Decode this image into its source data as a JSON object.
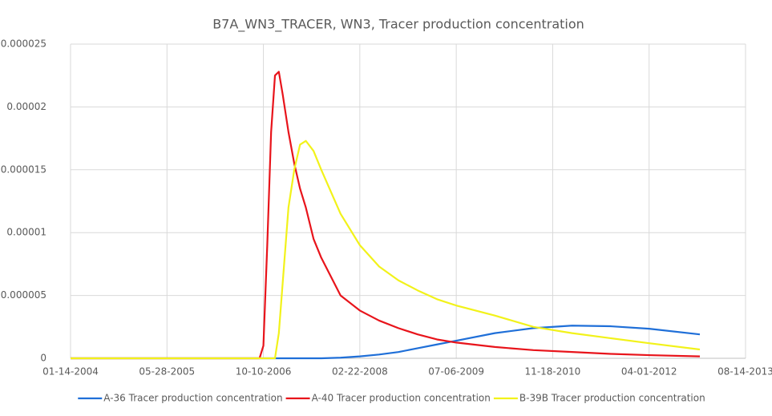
{
  "chart_data": {
    "type": "line",
    "title": "B7A_WN3_TRACER, WN3, Tracer production concentration",
    "x": [
      38000,
      38500,
      38980,
      39000,
      39020,
      39040,
      39060,
      39080,
      39100,
      39130,
      39160,
      39190,
      39220,
      39260,
      39300,
      39400,
      39500,
      39600,
      39700,
      39800,
      39900,
      40000,
      40200,
      40400,
      40600,
      40800,
      41000,
      41263
    ],
    "series": [
      {
        "name": "A-36 Tracer production concentration",
        "color": "#1f6fd8",
        "values": [
          0,
          0,
          0,
          0,
          0,
          0,
          0,
          0,
          0,
          0,
          0,
          0,
          0,
          0,
          0,
          5e-08,
          1.5e-07,
          3e-07,
          5e-07,
          8e-07,
          1.1e-06,
          1.4e-06,
          2e-06,
          2.4e-06,
          2.6e-06,
          2.55e-06,
          2.35e-06,
          1.9e-06
        ]
      },
      {
        "name": "A-40 Tracer production concentration",
        "color": "#e8141b",
        "values": [
          0,
          0,
          0,
          1e-06,
          9e-06,
          1.8e-05,
          2.25e-05,
          2.28e-05,
          2.1e-05,
          1.8e-05,
          1.55e-05,
          1.35e-05,
          1.2e-05,
          9.5e-06,
          8e-06,
          5e-06,
          3.8e-06,
          3e-06,
          2.4e-06,
          1.9e-06,
          1.5e-06,
          1.25e-06,
          9e-07,
          6.5e-07,
          5e-07,
          3.5e-07,
          2.5e-07,
          1.5e-07
        ]
      },
      {
        "name": "B-39B Tracer production concentration",
        "color": "#f2f21a",
        "values": [
          0,
          0,
          0,
          0,
          0,
          0,
          0,
          2e-06,
          6e-06,
          1.2e-05,
          1.5e-05,
          1.7e-05,
          1.73e-05,
          1.65e-05,
          1.5e-05,
          1.15e-05,
          9e-06,
          7.3e-06,
          6.2e-06,
          5.4e-06,
          4.7e-06,
          4.2e-06,
          3.4e-06,
          2.5e-06,
          2e-06,
          1.6e-06,
          1.2e-06,
          7e-07
        ]
      }
    ],
    "xlim": [
      38000,
      41500
    ],
    "xticks": [
      {
        "value": 38000,
        "label": "01-14-2004"
      },
      {
        "value": 38500,
        "label": "05-28-2005"
      },
      {
        "value": 39000,
        "label": "10-10-2006"
      },
      {
        "value": 39500,
        "label": "02-22-2008"
      },
      {
        "value": 40000,
        "label": "07-06-2009"
      },
      {
        "value": 40500,
        "label": "11-18-2010"
      },
      {
        "value": 41000,
        "label": "04-01-2012"
      },
      {
        "value": 41500,
        "label": "08-14-2013"
      }
    ],
    "ylim": [
      0,
      2.5e-05
    ],
    "yticks": [
      0,
      5e-06,
      1e-05,
      1.5e-05,
      2e-05,
      2.5e-05
    ],
    "grid": true,
    "legend": "bottom"
  }
}
